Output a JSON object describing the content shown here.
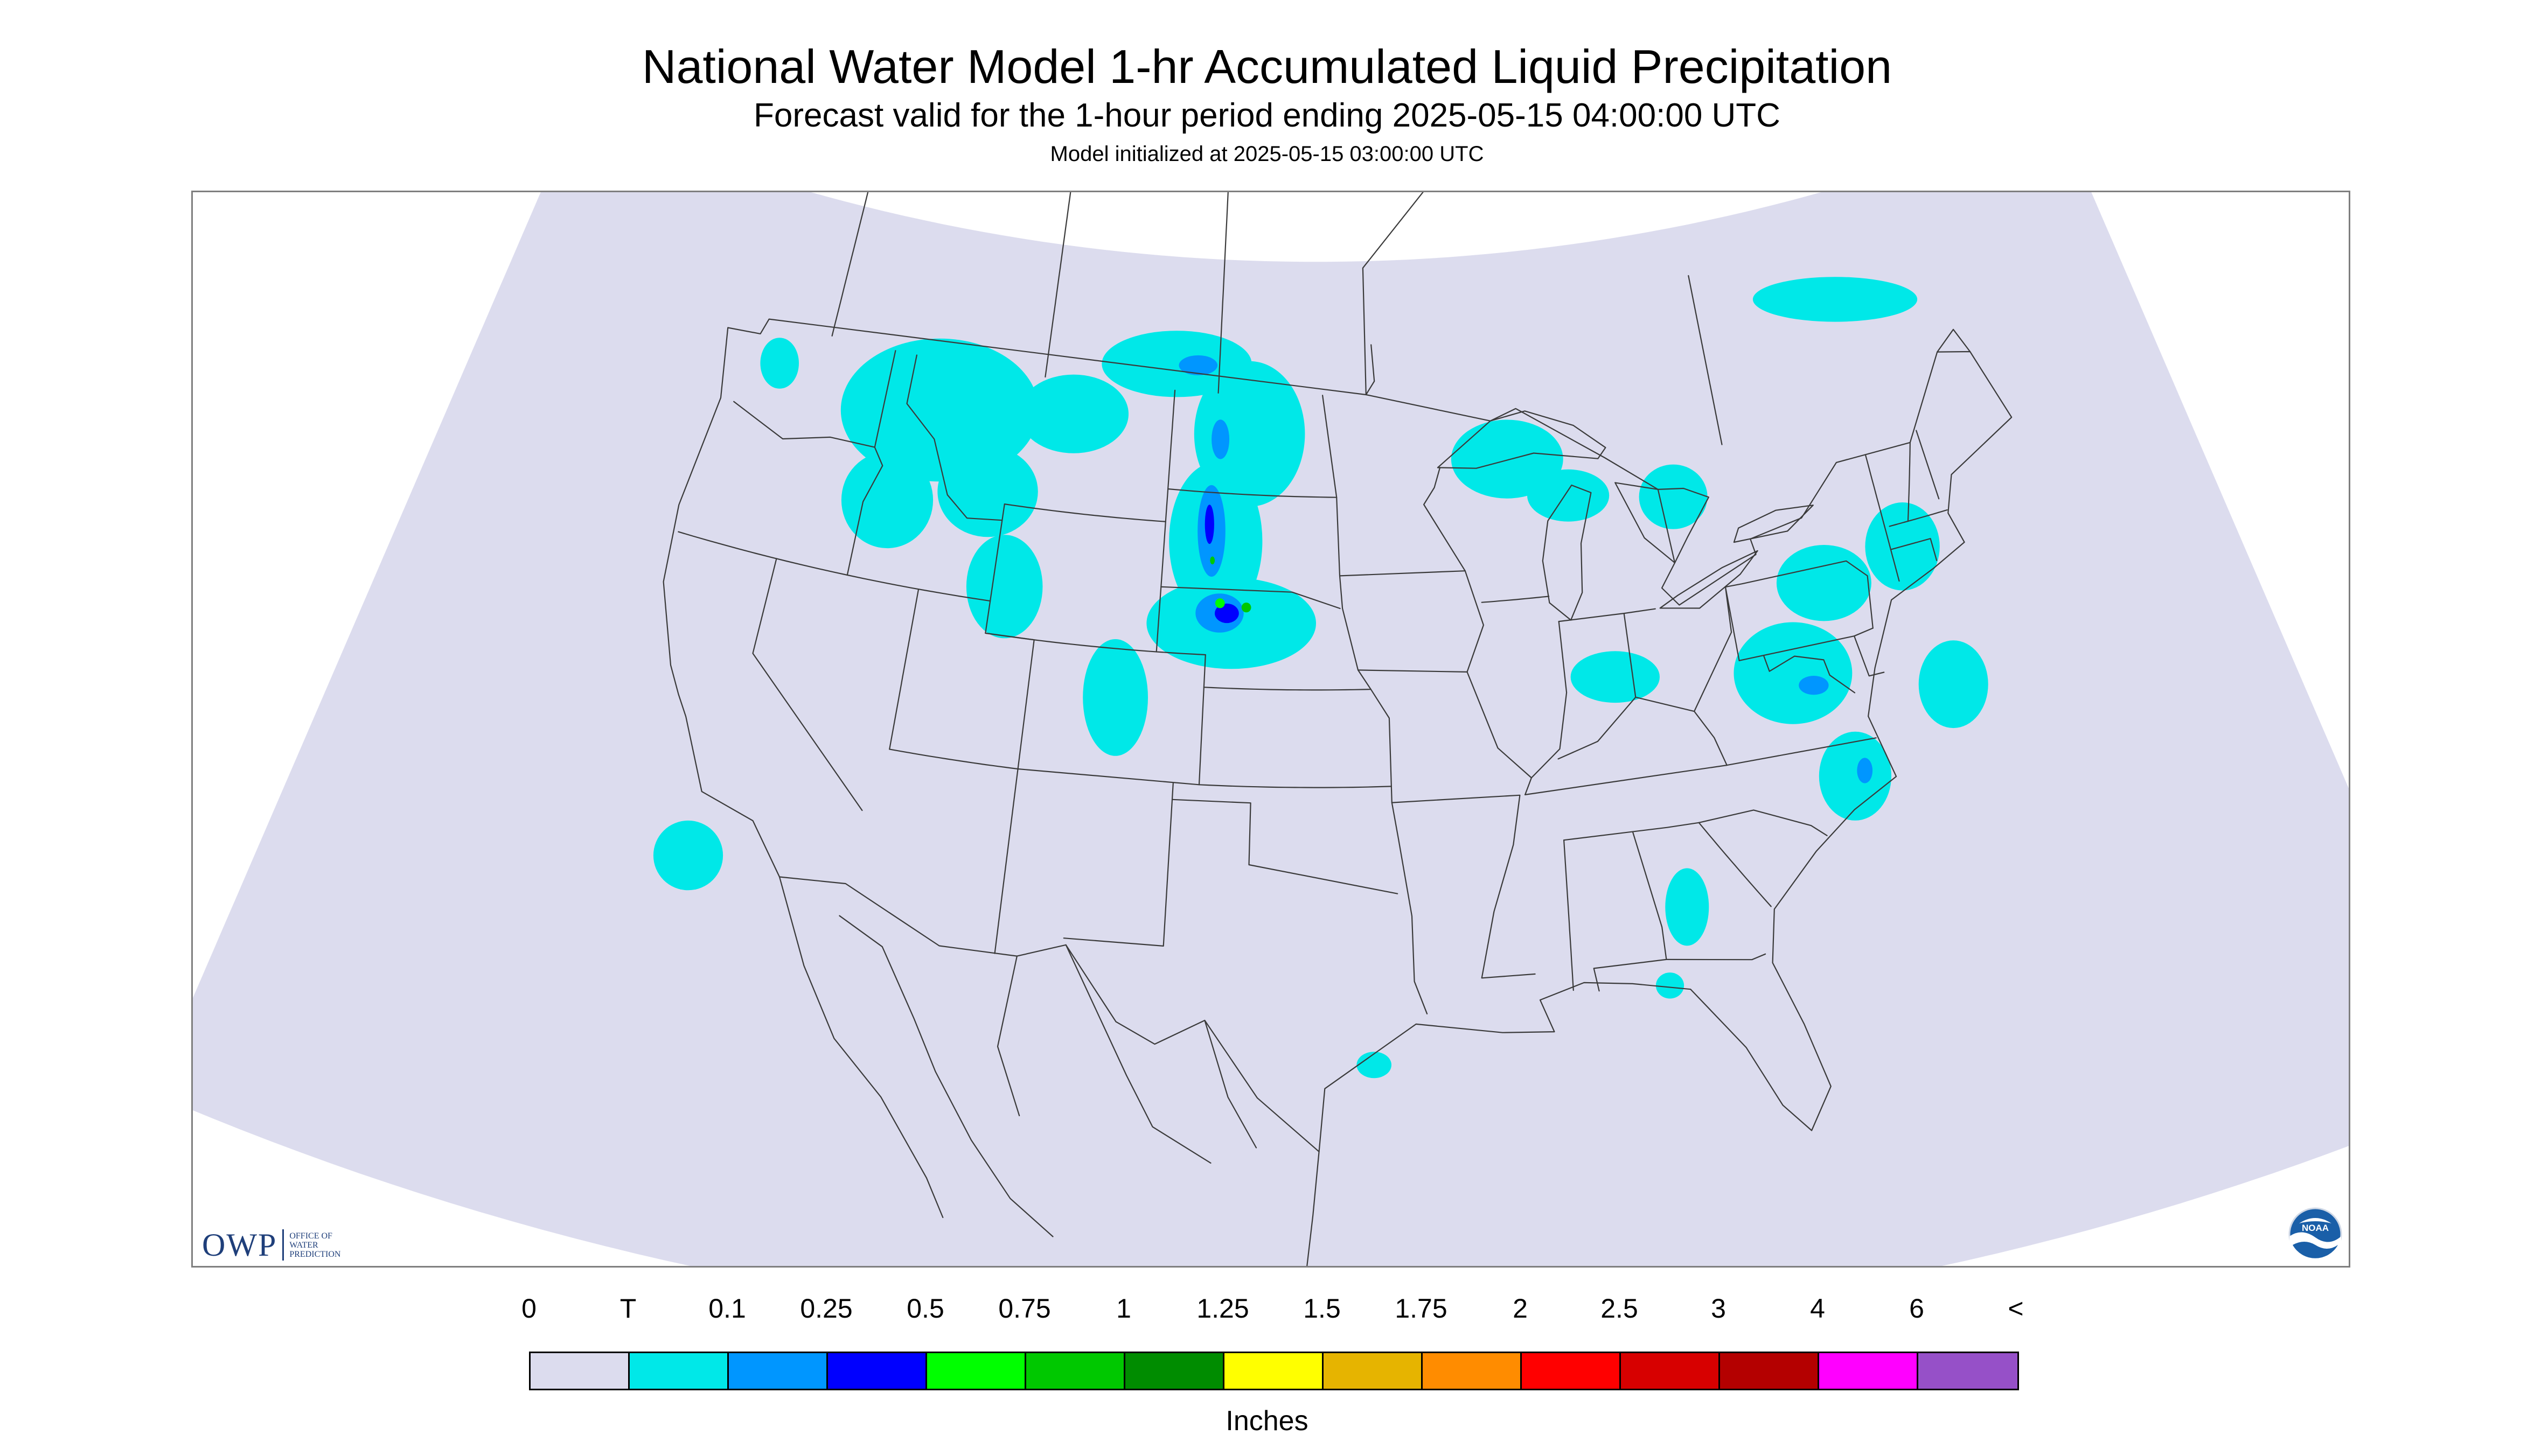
{
  "header": {
    "title": "National Water Model 1-hr Accumulated Liquid Precipitation",
    "subtitle": "Forecast valid for the 1-hour period ending 2025-05-15 04:00:00 UTC",
    "init_line": "Model initialized at 2025-05-15 03:00:00 UTC"
  },
  "map": {
    "background_color": "#dcdcee",
    "outside_color": "#ffffff",
    "border_color": "#3a3a3a",
    "coverage": "Continental United States"
  },
  "logos": {
    "owp_letters": "OWP",
    "owp_words": [
      "OFFICE OF",
      "WATER",
      "PREDICTION"
    ],
    "noaa_text": "NOAA"
  },
  "legend": {
    "tick_labels": [
      "0",
      "T",
      "0.1",
      "0.25",
      "0.5",
      "0.75",
      "1",
      "1.25",
      "1.5",
      "1.75",
      "2",
      "2.5",
      "3",
      "4",
      "6",
      "<"
    ],
    "colors": [
      "#dcdcee",
      "#00e8e8",
      "#0096ff",
      "#0000ff",
      "#00ff00",
      "#00c800",
      "#008c00",
      "#ffff00",
      "#e6b400",
      "#ff8c00",
      "#ff0000",
      "#d70000",
      "#b40000",
      "#ff00ff",
      "#9650c8"
    ],
    "units": "Inches"
  },
  "precip_cells": [
    {
      "region": "Northern Rockies and Northwest",
      "intensity": "T",
      "lon": -114.5,
      "lat": 47.5,
      "rlon": 4.5,
      "rlat": 2.2
    },
    {
      "region": "Idaho",
      "intensity": "T",
      "lon": -116.0,
      "lat": 44.5,
      "rlon": 2.0,
      "rlat": 1.5
    },
    {
      "region": "Southwest Montana",
      "intensity": "T",
      "lon": -111.8,
      "lat": 45.3,
      "rlon": 2.2,
      "rlat": 1.4
    },
    {
      "region": "Western Wyoming",
      "intensity": "T",
      "lon": -110.5,
      "lat": 42.5,
      "rlon": 1.6,
      "rlat": 1.6
    },
    {
      "region": "North-central Montana",
      "intensity": "T",
      "lon": -108.5,
      "lat": 48.0,
      "rlon": 2.5,
      "rlat": 1.2
    },
    {
      "region": "Western Washington",
      "intensity": "T",
      "lon": -122.0,
      "lat": 47.8,
      "rlon": 0.9,
      "rlat": 0.8
    },
    {
      "region": "Colorado Front Range",
      "intensity": "T",
      "lon": -105.5,
      "lat": 39.5,
      "rlon": 1.3,
      "rlat": 1.8
    },
    {
      "region": "Nebraska Panhandle",
      "intensity": "T",
      "lon": -101.0,
      "lat": 42.0,
      "rlon": 3.5,
      "rlat": 1.4
    },
    {
      "region": "Western South Dakota",
      "intensity": "T",
      "lon": -101.8,
      "lat": 44.5,
      "rlon": 2.0,
      "rlat": 2.4
    },
    {
      "region": "North Dakota",
      "intensity": "T",
      "lon": -100.5,
      "lat": 47.8,
      "rlon": 2.5,
      "rlat": 2.2
    },
    {
      "region": "Southern Saskatchewan",
      "intensity": "T",
      "lon": -104.0,
      "lat": 49.8,
      "rlon": 3.5,
      "rlat": 1.0
    },
    {
      "region": "Northern Minnesota and Lake Superior",
      "intensity": "T",
      "lon": -89.0,
      "lat": 46.8,
      "rlon": 2.5,
      "rlat": 1.2
    },
    {
      "region": "Upper Michigan",
      "intensity": "T",
      "lon": -86.5,
      "lat": 45.5,
      "rlon": 1.8,
      "rlat": 0.8
    },
    {
      "region": "Ohio Valley",
      "intensity": "T",
      "lon": -85.5,
      "lat": 39.8,
      "rlon": 1.8,
      "rlat": 0.8
    },
    {
      "region": "Southern Ontario",
      "intensity": "T",
      "lon": -82.0,
      "lat": 45.0,
      "rlon": 1.5,
      "rlat": 1.0
    },
    {
      "region": "Appalachians and Mid-Atlantic",
      "intensity": "T",
      "lon": -78.5,
      "lat": 39.0,
      "rlon": 2.4,
      "rlat": 1.6
    },
    {
      "region": "Pennsylvania",
      "intensity": "T",
      "lon": -76.5,
      "lat": 41.5,
      "rlon": 2.0,
      "rlat": 1.2
    },
    {
      "region": "New England",
      "intensity": "T",
      "lon": -73.0,
      "lat": 42.0,
      "rlon": 1.6,
      "rlat": 1.4
    },
    {
      "region": "Coastal North Carolina",
      "intensity": "T",
      "lon": -77.0,
      "lat": 35.5,
      "rlon": 1.4,
      "rlat": 1.4
    },
    {
      "region": "Offshore Mid-Atlantic",
      "intensity": "T",
      "lon": -72.5,
      "lat": 37.5,
      "rlon": 1.4,
      "rlat": 1.4
    },
    {
      "region": "Georgia",
      "intensity": "T",
      "lon": -84.0,
      "lat": 32.5,
      "rlon": 0.8,
      "rlat": 1.2
    },
    {
      "region": "Quebec",
      "intensity": "T",
      "lon": -73.0,
      "lat": 49.8,
      "rlon": 4.0,
      "rlat": 0.7
    },
    {
      "region": "Offshore California",
      "intensity": "T",
      "lon": -120.5,
      "lat": 32.5,
      "rlon": 1.3,
      "rlat": 1.1
    },
    {
      "region": "Texas Gulf Coast",
      "intensity": "T",
      "lon": -95.5,
      "lat": 28.5,
      "rlon": 0.6,
      "rlat": 0.4
    },
    {
      "region": "Northern Florida",
      "intensity": "T",
      "lon": -85.0,
      "lat": 30.2,
      "rlon": 0.5,
      "rlat": 0.4
    },
    {
      "region": "Nebraska Sandhills",
      "intensity": "0.1",
      "lon": -101.5,
      "lat": 42.3,
      "rlon": 1.0,
      "rlat": 0.6
    },
    {
      "region": "Western South Dakota",
      "intensity": "0.1",
      "lon": -102.0,
      "lat": 44.8,
      "rlon": 0.6,
      "rlat": 1.4
    },
    {
      "region": "Western North Dakota",
      "intensity": "0.1",
      "lon": -101.8,
      "lat": 47.6,
      "rlon": 0.4,
      "rlat": 0.6
    },
    {
      "region": "Southern Saskatchewan",
      "intensity": "0.1",
      "lon": -103.0,
      "lat": 49.8,
      "rlon": 0.9,
      "rlat": 0.3
    },
    {
      "region": "Virginia",
      "intensity": "0.1",
      "lon": -77.8,
      "lat": 38.5,
      "rlon": 0.6,
      "rlat": 0.3
    },
    {
      "region": "Coastal North Carolina",
      "intensity": "0.1",
      "lon": -76.6,
      "lat": 35.6,
      "rlon": 0.3,
      "rlat": 0.4
    },
    {
      "region": "South Dakota",
      "intensity": "0.25",
      "lon": -102.1,
      "lat": 45.0,
      "rlon": 0.2,
      "rlat": 0.6
    },
    {
      "region": "Nebraska",
      "intensity": "0.25",
      "lon": -101.2,
      "lat": 42.3,
      "rlon": 0.5,
      "rlat": 0.3
    },
    {
      "region": "Nebraska",
      "intensity": "0.5",
      "lon": -101.5,
      "lat": 42.6,
      "rlon": 0.2,
      "rlat": 0.15
    },
    {
      "region": "Nebraska",
      "intensity": "0.75",
      "lon": -100.4,
      "lat": 42.5,
      "rlon": 0.2,
      "rlat": 0.15
    },
    {
      "region": "South Dakota",
      "intensity": "0.75",
      "lon": -101.9,
      "lat": 43.9,
      "rlon": 0.1,
      "rlat": 0.12
    }
  ]
}
